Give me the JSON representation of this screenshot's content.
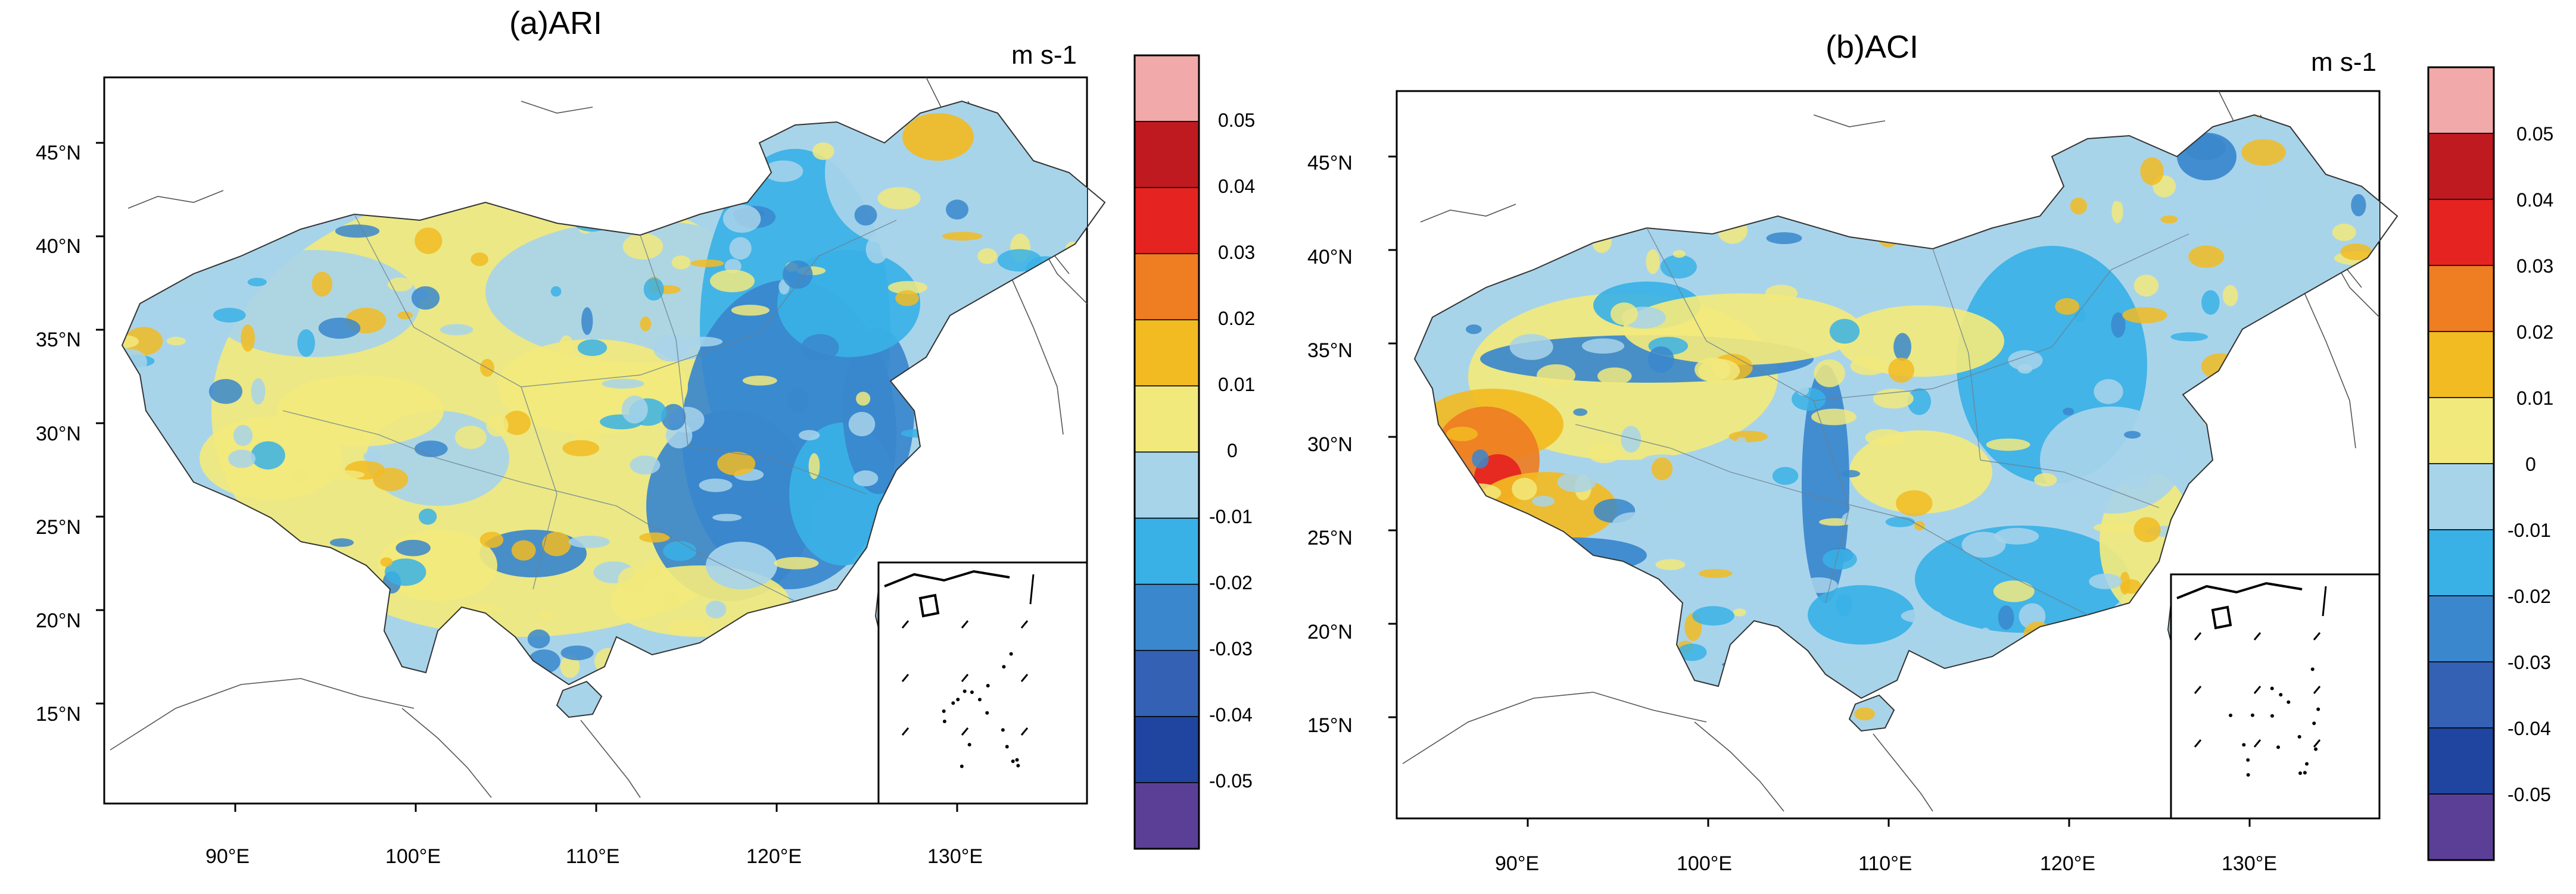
{
  "colors": {
    "colorbar": [
      "#5b3f97",
      "#1f45a0",
      "#3461b3",
      "#3a87cd",
      "#39b1e6",
      "#a8d4ea",
      "#f2e97c",
      "#f2bb22",
      "#ef7d22",
      "#e52320",
      "#bf1a1f",
      "#f2a9a9"
    ],
    "coast": "#555555",
    "border": "#222222"
  },
  "panels": [
    {
      "title": "(a)ARI",
      "unit": "m s-1",
      "y_ticks": [
        "45°N",
        "40°N",
        "35°N",
        "30°N",
        "25°N",
        "20°N",
        "15°N"
      ],
      "x_ticks": [
        "90°E",
        "100°E",
        "110°E",
        "120°E",
        "130°E"
      ],
      "colorbar_labels": [
        "0.05",
        "0.04",
        "0.03",
        "0.02",
        "0.01",
        "0",
        "-0.01",
        "-0.02",
        "-0.03",
        "-0.04",
        "-0.05"
      ]
    },
    {
      "title": "(b)ACI",
      "unit": "m s-1",
      "y_ticks": [
        "45°N",
        "40°N",
        "35°N",
        "30°N",
        "25°N",
        "20°N",
        "15°N"
      ],
      "x_ticks": [
        "90°E",
        "100°E",
        "110°E",
        "120°E",
        "130°E"
      ],
      "colorbar_labels": [
        "0.05",
        "0.04",
        "0.03",
        "0.02",
        "0.01",
        "0",
        "-0.01",
        "-0.02",
        "-0.03",
        "-0.04",
        "-0.05"
      ]
    }
  ]
}
